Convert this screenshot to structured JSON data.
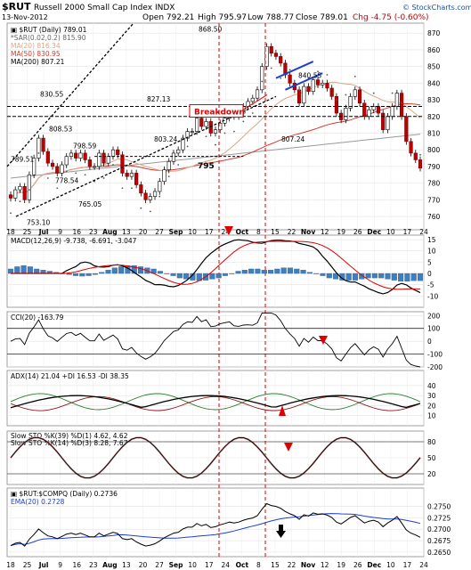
{
  "header": {
    "symbol": "$RUT",
    "name": "Russell 2000 Small Cap Index",
    "exchange": "INDX",
    "date": "13-Nov-2012",
    "open": "Open 792.21",
    "high": "High 795.97",
    "low": "Low 788.77",
    "close": "Close 789.01",
    "chg": "Chg -4.75 (-0.60%)",
    "watermark": "© StockCharts.com"
  },
  "colors": {
    "sma20": "#d9a88a",
    "sma50": "#d23b2b",
    "sma200": "#999999",
    "macd_hist": "#3f7fbf",
    "cci_pos": "#3b7a3b",
    "cci_neg": "#8b2e2e",
    "red": "#e00000",
    "blue": "#1c3fd0"
  },
  "chart_data": [
    {
      "type": "candlestick",
      "panel": "price",
      "legend": [
        "▣ $RUT (Daily) 789.01",
        "*SAR(0.02,0.2) 815.90",
        "MA(20) 816.34",
        "MA(50) 830.95",
        "MA(200) 807.21"
      ],
      "ylim": [
        752,
        876
      ],
      "yticks": [
        760,
        770,
        780,
        790,
        800,
        810,
        820,
        830,
        840,
        850,
        860,
        870
      ],
      "closes": [
        771,
        776,
        778,
        770,
        785,
        795,
        807,
        799,
        792,
        790,
        786,
        791,
        796,
        798,
        795,
        798,
        794,
        790,
        790,
        798,
        792,
        796,
        800,
        797,
        786,
        784,
        786,
        779,
        774,
        770,
        772,
        775,
        781,
        788,
        793,
        798,
        800,
        807,
        811,
        811,
        819,
        814,
        817,
        810,
        812,
        816,
        819,
        822,
        820,
        822,
        826,
        829,
        831,
        836,
        850,
        862,
        858,
        856,
        852,
        845,
        840,
        836,
        828,
        838,
        835,
        842,
        839,
        840,
        837,
        832,
        822,
        818,
        825,
        832,
        836,
        828,
        820,
        824,
        826,
        822,
        812,
        820,
        826,
        834,
        820,
        805,
        798,
        794,
        789
      ],
      "price_labels": [
        "789.51",
        "830.55",
        "808.53",
        "798.59",
        "778.54",
        "765.05",
        "753.10",
        "827.13",
        "803.24",
        "868.50",
        "840.55",
        "807.24",
        "795"
      ],
      "annotations": [
        "Breakdown"
      ]
    },
    {
      "type": "bar",
      "panel": "macd",
      "legend": "MACD(12,26,9) -9.738, -6.691, -3.047",
      "ylim": [
        -15,
        17
      ],
      "yticks": [
        15,
        10,
        5,
        0,
        -5,
        -10
      ],
      "hist": [
        2,
        3,
        3.5,
        3,
        2,
        1.5,
        1,
        0.5,
        0,
        -0.5,
        -1,
        -1.2,
        -1,
        -0.5,
        0.5,
        1.5,
        2.5,
        3,
        3.5,
        3.5,
        3,
        2.5,
        2,
        1,
        0,
        -1,
        -2,
        -2.5,
        -3,
        -3.2,
        -3,
        -2.5,
        -2,
        -1,
        0,
        1,
        1.5,
        2,
        2,
        1.5,
        1.5,
        2,
        2.5,
        2.5,
        2,
        1.5,
        0.5,
        0,
        -1,
        -2,
        -2.5,
        -3,
        -3,
        -3,
        -2.5,
        -2,
        -2,
        -2,
        -2.5,
        -3,
        -3.5,
        -3.5,
        -3.2,
        -3.2
      ]
    },
    {
      "type": "area",
      "panel": "cci",
      "legend": "CCI(20) -163.79",
      "ylim": [
        -200,
        230
      ],
      "yticks": [
        200,
        100,
        0,
        -100,
        -200
      ]
    },
    {
      "type": "line",
      "panel": "adx",
      "legend": "ADX(14) 21.04 +DI 16.53 -DI 38.35",
      "ylim": [
        0,
        55
      ],
      "yticks": [
        40,
        30,
        20,
        10
      ]
    },
    {
      "type": "line",
      "panel": "sto",
      "legend": "Slow STO %K(39) %D(1) 4.62, 4.62",
      "legend2": "Slow STO %K(14) %D(3) 8.28, 7.67",
      "ylim": [
        0,
        100
      ],
      "yticks": [
        80,
        50,
        20
      ]
    },
    {
      "type": "line",
      "panel": "ratio",
      "legend": "▣ $RUT:$COMPQ (Daily) 0.2736",
      "legend2": "EMA(20) 0.2728",
      "ylim": [
        0.264,
        0.279
      ],
      "yticks": [
        0.275,
        0.2725,
        0.27,
        0.2675,
        0.265
      ]
    }
  ],
  "x_axis": {
    "labels": [
      "18",
      "25",
      "Jul",
      "9",
      "16",
      "23",
      "Aug",
      "13",
      "20",
      "27",
      "Sep",
      "10",
      "17",
      "24",
      "Oct",
      "8",
      "15",
      "22",
      "Nov",
      "12",
      "19",
      "26",
      "Dec",
      "10",
      "17",
      "24"
    ]
  }
}
